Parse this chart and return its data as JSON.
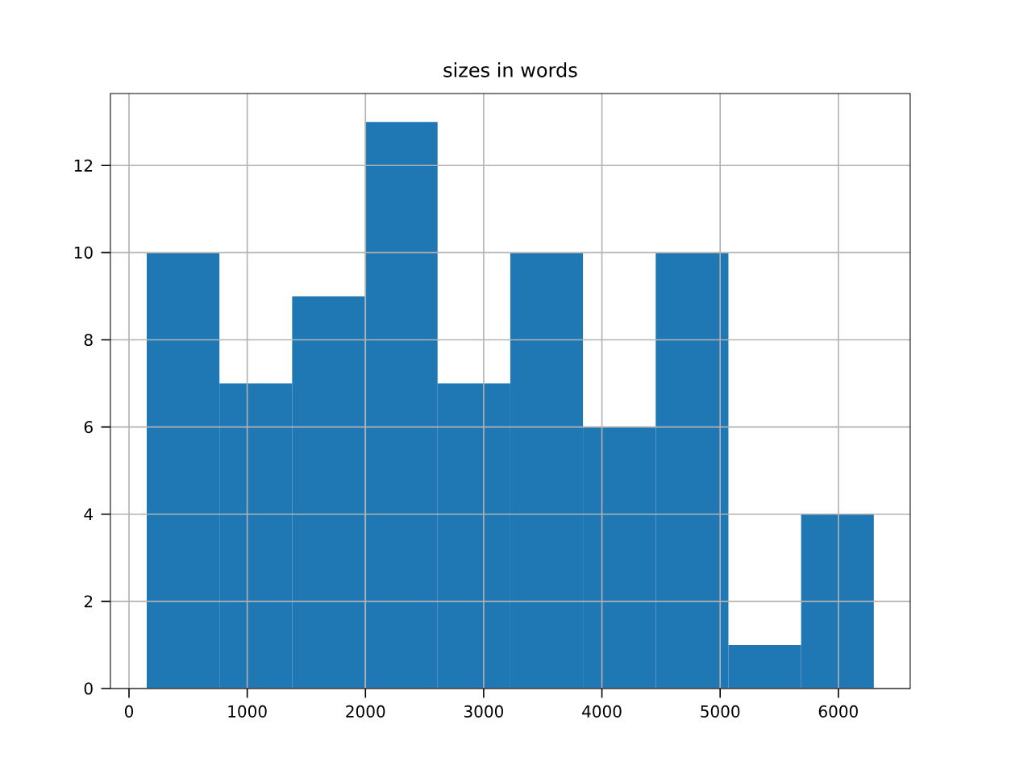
{
  "chart_data": {
    "type": "histogram",
    "title": "sizes in words",
    "bins": [
      150,
      765,
      1380,
      1995,
      2610,
      3225,
      3840,
      4455,
      5070,
      5685,
      6300
    ],
    "values": [
      10,
      7,
      9,
      13,
      7,
      10,
      6,
      10,
      1,
      4
    ],
    "color": "#1f77b4",
    "xlim": [
      -157.5,
      6607.5
    ],
    "xticks": [
      0,
      1000,
      2000,
      3000,
      4000,
      5000,
      6000
    ],
    "ylim": [
      0,
      13.65
    ],
    "yticks": [
      0,
      2,
      4,
      6,
      8,
      10,
      12
    ],
    "grid": true
  }
}
